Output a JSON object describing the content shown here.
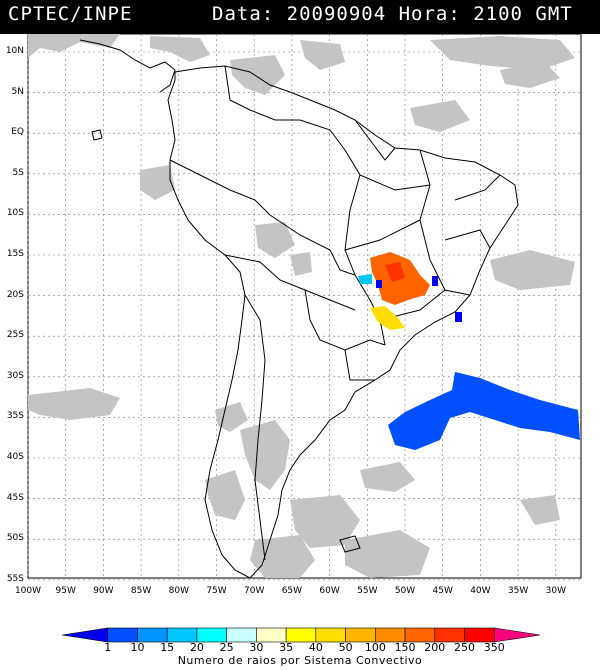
{
  "header": {
    "left": "CPTEC/INPE",
    "right": "Data: 20090904 Hora: 2100 GMT"
  },
  "lat_labels": [
    "10N",
    "5N",
    "EQ",
    "5S",
    "10S",
    "15S",
    "20S",
    "25S",
    "30S",
    "35S",
    "40S",
    "45S",
    "50S",
    "55S"
  ],
  "lon_labels": [
    "100W",
    "95W",
    "90W",
    "85W",
    "80W",
    "75W",
    "70W",
    "65W",
    "60W",
    "55W",
    "50W",
    "45W",
    "40W",
    "35W",
    "30W"
  ],
  "colorbar": {
    "ticks": [
      "1",
      "10",
      "15",
      "20",
      "25",
      "30",
      "35",
      "40",
      "50",
      "100",
      "150",
      "200",
      "250",
      "350"
    ],
    "title": "Numero de raios por Sistema Convectivo",
    "colors": [
      "#0000ee",
      "#0050ff",
      "#0096ff",
      "#00c8ff",
      "#00ffff",
      "#c8ffff",
      "#ffffc8",
      "#ffff00",
      "#ffdc00",
      "#ffb400",
      "#ff8c00",
      "#ff6400",
      "#ff3200",
      "#ff0000",
      "#ff0080"
    ]
  },
  "map_colors": {
    "cloud": "#c4c4c4",
    "border": "#000000",
    "grid": "#7a7a7a"
  },
  "systems": [
    {
      "name": "ocean-system-south-atlantic",
      "count_class": "1"
    },
    {
      "name": "system-central-brazil",
      "count_class": "200"
    },
    {
      "name": "system-parana",
      "count_class": "40"
    }
  ]
}
